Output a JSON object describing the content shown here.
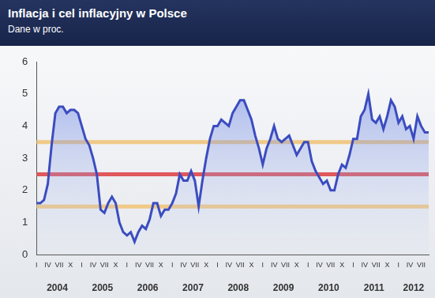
{
  "chart_data": {
    "type": "line",
    "title": "Inflacja i cel inflacyjny w Polsce",
    "subtitle": "Dane w proc.",
    "categories": [
      "I",
      null,
      null,
      "IV",
      null,
      null,
      "VII",
      null,
      null,
      "X",
      null,
      null,
      "I",
      null,
      null,
      "IV",
      null,
      null,
      "VII",
      null,
      null,
      "X",
      null,
      null,
      "I",
      null,
      null,
      "IV",
      null,
      null,
      "VII",
      null,
      null,
      "X",
      null,
      null,
      "I",
      null,
      null,
      "IV",
      null,
      null,
      "VII",
      null,
      null,
      "X",
      null,
      null,
      "I",
      null,
      null,
      "IV",
      null,
      null,
      "VII",
      null,
      null,
      "X",
      null,
      null,
      "I",
      null,
      null,
      "IV",
      null,
      null,
      "VII",
      null,
      null,
      "X",
      null,
      null,
      "I",
      null,
      null,
      "IV",
      null,
      null,
      "VII",
      null,
      null,
      "X",
      null,
      null,
      "I",
      null,
      null,
      "IV",
      null,
      null,
      "VII",
      null,
      null,
      "X",
      null,
      null,
      "I",
      null,
      null,
      "IV",
      null,
      null,
      "VII",
      null,
      null
    ],
    "years": [
      "2004",
      "2005",
      "2006",
      "2007",
      "2008",
      "2009",
      "2010",
      "2011",
      "2012"
    ],
    "values": [
      1.6,
      1.6,
      1.7,
      2.2,
      3.4,
      4.4,
      4.6,
      4.6,
      4.4,
      4.5,
      4.5,
      4.4,
      4.0,
      3.6,
      3.4,
      3.0,
      2.5,
      1.4,
      1.3,
      1.6,
      1.8,
      1.6,
      1.0,
      0.7,
      0.6,
      0.7,
      0.4,
      0.7,
      0.9,
      0.8,
      1.1,
      1.6,
      1.6,
      1.2,
      1.4,
      1.4,
      1.6,
      1.9,
      2.5,
      2.3,
      2.3,
      2.6,
      2.3,
      1.5,
      2.3,
      3.0,
      3.6,
      4.0,
      4.0,
      4.2,
      4.1,
      4.0,
      4.4,
      4.6,
      4.8,
      4.8,
      4.5,
      4.2,
      3.7,
      3.3,
      2.8,
      3.3,
      3.6,
      4.0,
      3.6,
      3.5,
      3.6,
      3.7,
      3.4,
      3.1,
      3.3,
      3.5,
      3.5,
      2.9,
      2.6,
      2.4,
      2.2,
      2.3,
      2.0,
      2.0,
      2.5,
      2.8,
      2.7,
      3.1,
      3.6,
      3.6,
      4.3,
      4.5,
      5.0,
      4.2,
      4.1,
      4.3,
      3.9,
      4.3,
      4.8,
      4.6,
      4.1,
      4.3,
      3.9,
      4.0,
      3.6,
      4.3,
      4.0,
      3.8,
      3.8
    ],
    "color": "#3b4cc0",
    "ylim": [
      0,
      6
    ],
    "yticks": [
      0,
      1,
      2,
      3,
      4,
      5,
      6
    ],
    "grid": false,
    "reference_lines": [
      {
        "value": 3.5,
        "color": "#f0c987"
      },
      {
        "value": 2.5,
        "color": "#e0575c"
      },
      {
        "value": 1.5,
        "color": "#f0c987"
      }
    ]
  }
}
